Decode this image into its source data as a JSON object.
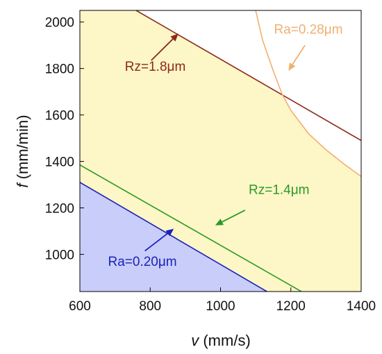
{
  "chart_data": {
    "type": "area",
    "title": "",
    "xlabel": {
      "var": "v",
      "unit": " (mm/s)"
    },
    "ylabel": {
      "var": "f",
      "unit": " (mm/min)"
    },
    "xlim": [
      600,
      1400
    ],
    "ylim": [
      840,
      2050
    ],
    "xticks": [
      600,
      800,
      1000,
      1200,
      1400
    ],
    "yticks": [
      1000,
      1200,
      1400,
      1600,
      1800,
      2000
    ],
    "grid": false,
    "legend": "none",
    "series": [
      {
        "name": "Rz=1.8μm",
        "color": "#8b2a1a",
        "points": [
          [
            760,
            2050
          ],
          [
            1400,
            1490
          ]
        ]
      },
      {
        "name": "Ra=0.28μm",
        "color": "#f0b070",
        "points": [
          [
            1100,
            2050
          ],
          [
            1120,
            1920
          ],
          [
            1150,
            1790
          ],
          [
            1175,
            1690
          ],
          [
            1200,
            1620
          ],
          [
            1250,
            1520
          ],
          [
            1300,
            1450
          ],
          [
            1350,
            1390
          ],
          [
            1400,
            1335
          ]
        ]
      },
      {
        "name": "Rz=1.4μm",
        "color": "#2a9a2a",
        "points": [
          [
            600,
            1385
          ],
          [
            1230,
            840
          ]
        ]
      },
      {
        "name": "Ra=0.20μm",
        "color": "#1a22b8",
        "points": [
          [
            600,
            1310
          ],
          [
            1132,
            840
          ]
        ]
      }
    ],
    "regions": [
      {
        "name": "feasible",
        "color": "#fdf6c6"
      },
      {
        "name": "Ra=0.20 region",
        "color": "#c9cdfa"
      }
    ],
    "annotations": [
      {
        "text": "Rz=1.8μm",
        "color": "#8b2a1a",
        "at": [
          728,
          1790
        ],
        "arrow_from": [
          803,
          1835
        ],
        "arrow_to": [
          880,
          1950
        ]
      },
      {
        "text": "Ra=0.28μm",
        "color": "#f0b070",
        "at": [
          1152,
          1950
        ],
        "arrow_from": [
          1240,
          1900
        ],
        "arrow_to": [
          1193,
          1790
        ]
      },
      {
        "text": "Rz=1.4μm",
        "color": "#2a9a2a",
        "at": [
          1080,
          1260
        ],
        "arrow_from": [
          1070,
          1190
        ],
        "arrow_to": [
          985,
          1125
        ]
      },
      {
        "text": "Ra=0.20μm",
        "color": "#1a22b8",
        "at": [
          680,
          950
        ],
        "arrow_from": [
          785,
          1015
        ],
        "arrow_to": [
          867,
          1110
        ]
      }
    ]
  }
}
